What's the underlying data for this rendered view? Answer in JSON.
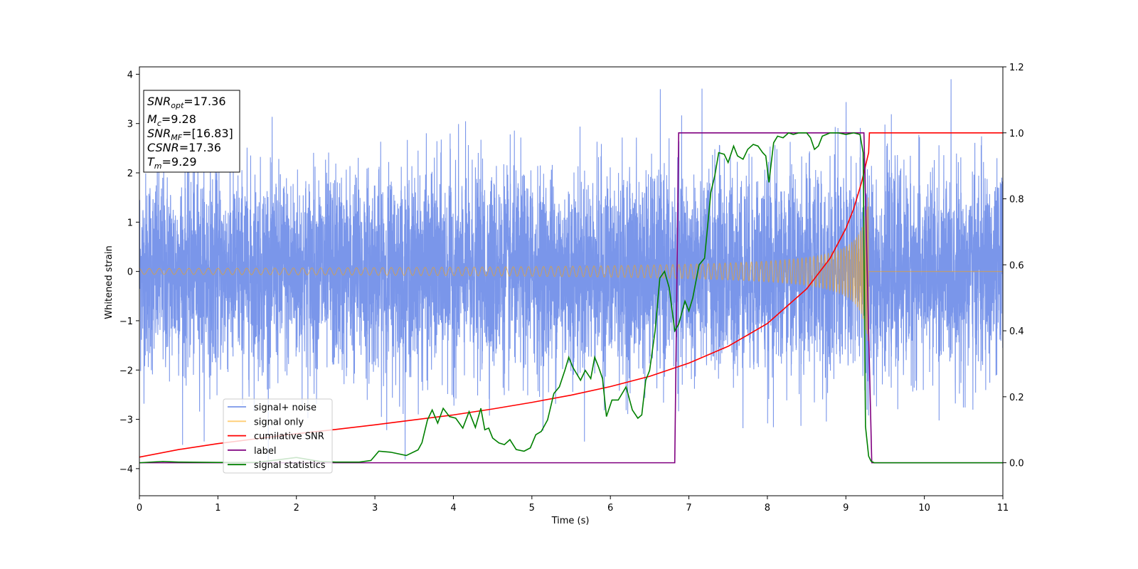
{
  "chart_data": {
    "type": "line",
    "title": "",
    "xlabel": "Time (s)",
    "ylabel": "Whitened strain",
    "xlim": [
      0,
      11
    ],
    "ylim": [
      -4.55,
      4.15
    ],
    "y2lim": [
      -0.1,
      1.2
    ],
    "xticks": [
      "0",
      "1",
      "2",
      "3",
      "4",
      "5",
      "6",
      "7",
      "8",
      "9",
      "10",
      "11"
    ],
    "yticks": [
      {
        "v": -4,
        "t": "−4"
      },
      {
        "v": -3,
        "t": "−3"
      },
      {
        "v": -2,
        "t": "−2"
      },
      {
        "v": -1,
        "t": "−1"
      },
      {
        "v": 0,
        "t": "0"
      },
      {
        "v": 1,
        "t": "1"
      },
      {
        "v": 2,
        "t": "2"
      },
      {
        "v": 3,
        "t": "3"
      },
      {
        "v": 4,
        "t": "4"
      }
    ],
    "y2ticks": [
      {
        "v": 0.0,
        "t": "0.0"
      },
      {
        "v": 0.2,
        "t": "0.2"
      },
      {
        "v": 0.4,
        "t": "0.4"
      },
      {
        "v": 0.6,
        "t": "0.6"
      },
      {
        "v": 0.8,
        "t": "0.8"
      },
      {
        "v": 1.0,
        "t": "1.0"
      },
      {
        "v": 1.2,
        "t": "1.2"
      }
    ],
    "grid": false,
    "legend_position": "lower-left",
    "annotation": {
      "lines": [
        {
          "var": "SNR",
          "sub": "opt",
          "rest": "=17.36"
        },
        {
          "var": "M",
          "sub": "c",
          "rest": "=9.28"
        },
        {
          "var": "SNR",
          "sub": "MF",
          "rest": "=[16.83]"
        },
        {
          "var": "CSNR",
          "sub": "",
          "rest": "=17.36"
        },
        {
          "var": "T",
          "sub": "m",
          "rest": "=9.29"
        }
      ]
    },
    "series": [
      {
        "name": "signal+ noise",
        "color": "#4169e1",
        "axis": "left",
        "kind": "noise",
        "description_scale": 1.0
      },
      {
        "name": "signal only",
        "color": "#ffa500",
        "axis": "left",
        "kind": "chirp"
      },
      {
        "name": "cumilative SNR",
        "color": "#ff0000",
        "axis": "right",
        "x": [
          0,
          0.5,
          1,
          1.5,
          2,
          2.5,
          3,
          3.5,
          4,
          4.5,
          5,
          5.5,
          6,
          6.5,
          7,
          7.5,
          8,
          8.5,
          8.8,
          9.0,
          9.1,
          9.2,
          9.25,
          9.29,
          9.3,
          11
        ],
        "y": [
          0.017,
          0.04,
          0.058,
          0.073,
          0.088,
          0.101,
          0.115,
          0.13,
          0.145,
          0.163,
          0.183,
          0.205,
          0.231,
          0.262,
          0.302,
          0.353,
          0.422,
          0.527,
          0.62,
          0.71,
          0.77,
          0.85,
          0.9,
          0.94,
          1.0,
          1.0
        ]
      },
      {
        "name": "label",
        "color": "#800080",
        "axis": "right",
        "x": [
          0,
          6.82,
          6.87,
          9.23,
          9.33,
          11
        ],
        "y": [
          0,
          0,
          1,
          1,
          0,
          0
        ]
      },
      {
        "name": "signal statistics",
        "color": "#008000",
        "axis": "right",
        "x": [
          0,
          0.3,
          0.5,
          1.0,
          1.5,
          2.0,
          2.1,
          2.3,
          2.5,
          2.8,
          2.95,
          3.05,
          3.2,
          3.4,
          3.55,
          3.6,
          3.67,
          3.73,
          3.8,
          3.87,
          3.95,
          4.03,
          4.12,
          4.2,
          4.28,
          4.35,
          4.4,
          4.45,
          4.5,
          4.58,
          4.65,
          4.72,
          4.8,
          4.9,
          4.98,
          5.05,
          5.12,
          5.2,
          5.28,
          5.35,
          5.42,
          5.47,
          5.52,
          5.57,
          5.62,
          5.68,
          5.75,
          5.8,
          5.85,
          5.9,
          5.95,
          6.02,
          6.1,
          6.2,
          6.28,
          6.35,
          6.4,
          6.45,
          6.5,
          6.57,
          6.63,
          6.69,
          6.75,
          6.82,
          6.87,
          6.95,
          7.0,
          7.05,
          7.13,
          7.2,
          7.28,
          7.33,
          7.38,
          7.45,
          7.5,
          7.57,
          7.62,
          7.69,
          7.75,
          7.82,
          7.88,
          7.94,
          7.98,
          8.02,
          8.08,
          8.13,
          8.2,
          8.27,
          8.33,
          8.4,
          8.5,
          8.55,
          8.6,
          8.65,
          8.7,
          8.75,
          8.8,
          8.85,
          8.9,
          9.0,
          9.1,
          9.18,
          9.22,
          9.25,
          9.29,
          9.32,
          9.36,
          9.5,
          11
        ],
        "y": [
          0.0,
          0.004,
          0.002,
          0.001,
          0.001,
          0.016,
          0.012,
          0.004,
          0.002,
          0.002,
          0.007,
          0.035,
          0.032,
          0.022,
          0.039,
          0.061,
          0.13,
          0.16,
          0.12,
          0.165,
          0.14,
          0.135,
          0.105,
          0.155,
          0.107,
          0.165,
          0.1,
          0.105,
          0.075,
          0.06,
          0.055,
          0.07,
          0.04,
          0.035,
          0.045,
          0.085,
          0.095,
          0.13,
          0.21,
          0.23,
          0.28,
          0.32,
          0.29,
          0.27,
          0.25,
          0.28,
          0.255,
          0.32,
          0.29,
          0.255,
          0.14,
          0.19,
          0.19,
          0.23,
          0.16,
          0.135,
          0.145,
          0.25,
          0.28,
          0.4,
          0.56,
          0.58,
          0.53,
          0.4,
          0.42,
          0.49,
          0.46,
          0.5,
          0.6,
          0.62,
          0.82,
          0.87,
          0.94,
          0.935,
          0.91,
          0.96,
          0.93,
          0.92,
          0.95,
          0.965,
          0.96,
          0.94,
          0.93,
          0.85,
          0.97,
          0.99,
          0.985,
          1.0,
          0.995,
          1.0,
          1.0,
          0.985,
          0.95,
          0.96,
          0.99,
          0.995,
          1.0,
          1.0,
          1.0,
          0.995,
          1.0,
          0.995,
          0.94,
          0.11,
          0.02,
          0.005,
          0.0,
          0.0,
          0.0
        ]
      }
    ]
  }
}
